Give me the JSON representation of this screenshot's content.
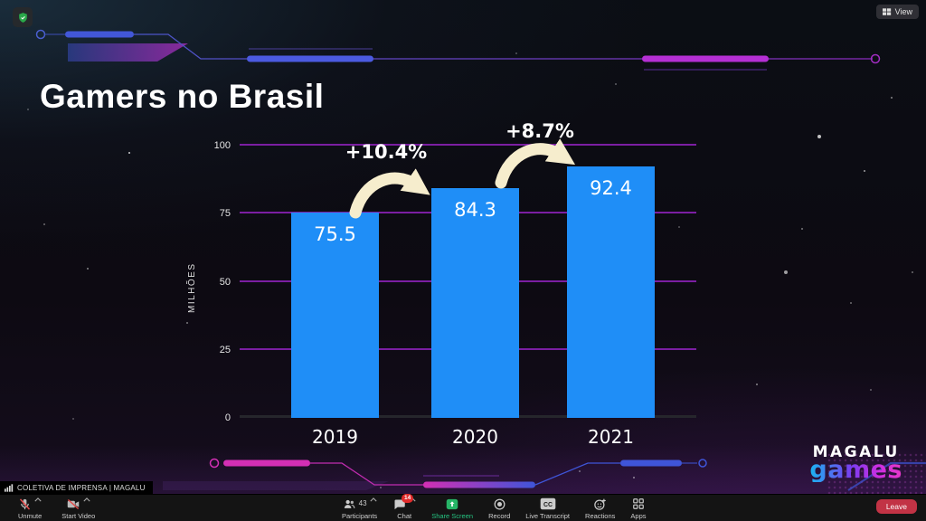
{
  "window": {
    "view_button": "View"
  },
  "meeting_info": {
    "label": "COLETIVA DE IMPRENSA | MAGALU"
  },
  "toolbar": {
    "unmute_label": "Unmute",
    "start_video_label": "Start Video",
    "participants_label": "Participants",
    "participants_count": "43",
    "chat_label": "Chat",
    "chat_badge": "14",
    "share_screen_label": "Share Screen",
    "record_label": "Record",
    "live_transcript_label": "Live Transcript",
    "reactions_label": "Reactions",
    "apps_label": "Apps",
    "leave_label": "Leave"
  },
  "slide": {
    "title": "Gamers no Brasil",
    "brand_line1": "MAGALU",
    "brand_line2": "games"
  },
  "chart_data": {
    "type": "bar",
    "title": "Gamers no Brasil",
    "categories": [
      "2019",
      "2020",
      "2021"
    ],
    "values": [
      75.5,
      84.3,
      92.4
    ],
    "value_labels": [
      "75.5",
      "84.3",
      "92.4"
    ],
    "growth_annotations": [
      "+10.4%",
      "+8.7%"
    ],
    "ylabel": "MILHÕES",
    "yticks": [
      0,
      25,
      50,
      75,
      100
    ],
    "ylim": [
      0,
      100
    ],
    "grid": true,
    "legend": false,
    "bar_color": "#1f8ef7",
    "gridline_color": "#8220aa",
    "annotation_arrow_color": "#f6edcd"
  },
  "colors": {
    "share_screen_green": "#25c481",
    "leave_red": "#c23345",
    "chat_badge_red": "#e02b2b",
    "shield_green": "#2aa84a"
  }
}
